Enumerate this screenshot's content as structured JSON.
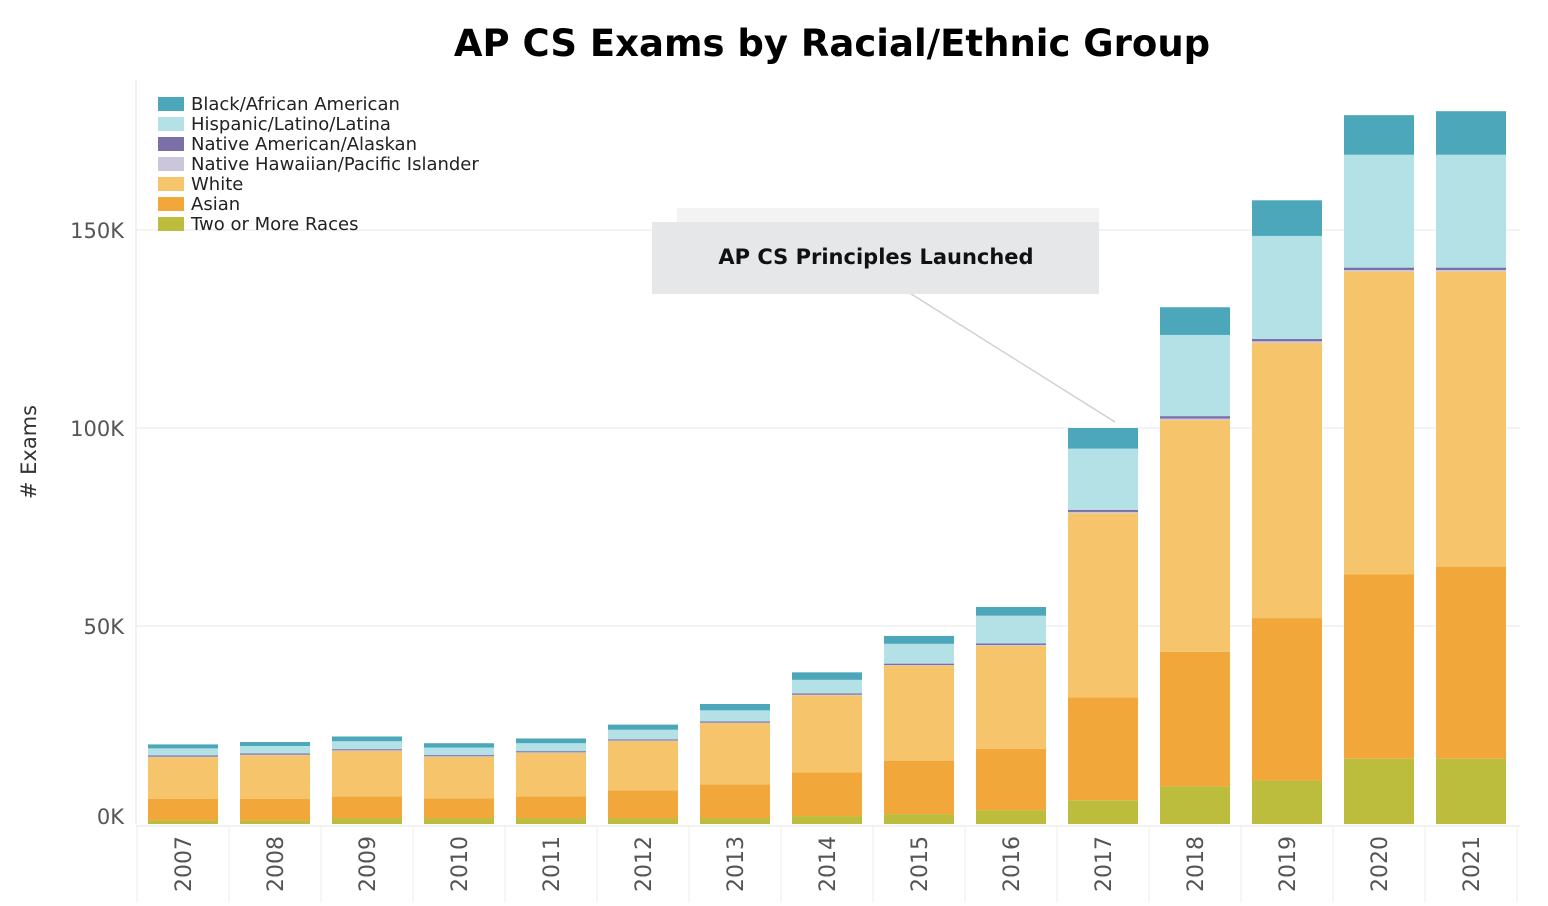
{
  "chart_data": {
    "type": "bar",
    "stacked": true,
    "title": "AP CS Exams by Racial/Ethnic Group",
    "ylabel": "# Exams",
    "xlabel": "",
    "ylim": [
      0,
      180000
    ],
    "yticks": [
      {
        "value": 0,
        "label": "0K"
      },
      {
        "value": 50000,
        "label": "50K"
      },
      {
        "value": 100000,
        "label": "100K"
      },
      {
        "value": 150000,
        "label": "150K"
      }
    ],
    "grid": true,
    "legend_position": "top-left",
    "categories": [
      "2007",
      "2008",
      "2009",
      "2010",
      "2011",
      "2012",
      "2013",
      "2014",
      "2015",
      "2016",
      "2017",
      "2018",
      "2019",
      "2020",
      "2021"
    ],
    "series": [
      {
        "name": "Two or More Races",
        "color": "#bcbd3c",
        "values": [
          900,
          900,
          1500,
          1500,
          1500,
          1500,
          1500,
          2000,
          2500,
          3500,
          6000,
          9500,
          11000,
          16500,
          16500
        ]
      },
      {
        "name": "Asian",
        "color": "#f2a73b",
        "values": [
          5500,
          5500,
          5500,
          5000,
          5500,
          7000,
          8500,
          11000,
          13500,
          15500,
          26000,
          34000,
          41000,
          46500,
          48500
        ]
      },
      {
        "name": "White",
        "color": "#f6c56b",
        "values": [
          10500,
          11000,
          11500,
          10500,
          11000,
          12500,
          15500,
          19500,
          24000,
          26000,
          46500,
          58500,
          69500,
          76500,
          74500
        ]
      },
      {
        "name": "Native Hawaiian/Pacific Islander",
        "color": "#cbc6dc",
        "values": [
          100,
          100,
          100,
          100,
          100,
          100,
          100,
          150,
          150,
          200,
          300,
          400,
          400,
          400,
          400
        ]
      },
      {
        "name": "Native American/Alaskan",
        "color": "#7b6fa8",
        "values": [
          300,
          300,
          300,
          300,
          300,
          300,
          300,
          350,
          350,
          400,
          500,
          600,
          600,
          600,
          600
        ]
      },
      {
        "name": "Hispanic/Latino/Latina",
        "color": "#b3e1e6",
        "values": [
          1800,
          1900,
          2000,
          1900,
          2000,
          2400,
          2800,
          3400,
          5000,
          7000,
          15500,
          20500,
          26000,
          28500,
          28500
        ]
      },
      {
        "name": "Black/African American",
        "color": "#4ca7bb",
        "values": [
          1000,
          1000,
          1200,
          1100,
          1200,
          1300,
          1600,
          1900,
          2000,
          2200,
          5200,
          7000,
          9000,
          10000,
          11000
        ]
      }
    ],
    "legend_order": [
      "Black/African American",
      "Hispanic/Latino/Latina",
      "Native American/Alaskan",
      "Native Hawaiian/Pacific Islander",
      "White",
      "Asian",
      "Two or More Races"
    ],
    "annotations": [
      {
        "text": "AP CS Principles Launched",
        "category": "2017",
        "value": 100000
      }
    ]
  }
}
